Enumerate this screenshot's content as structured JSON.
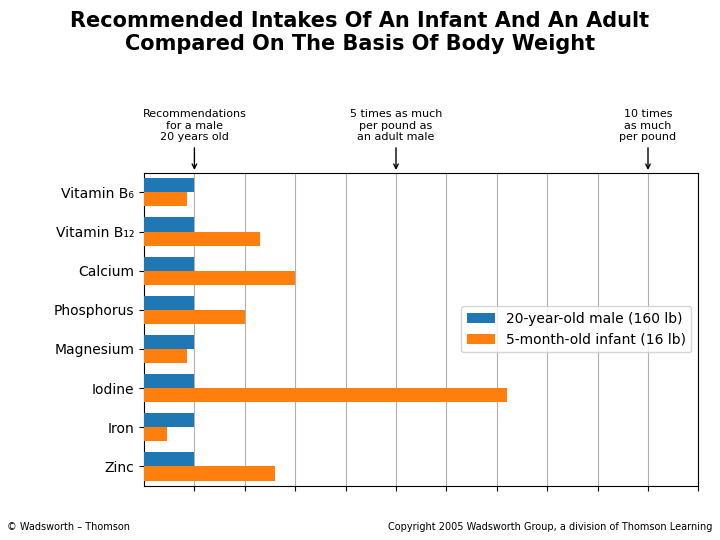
{
  "chart_data": {
    "type": "bar",
    "orientation": "horizontal",
    "title": "Recommended Intakes Of An Infant And An Adult\nCompared On The Basis Of Body Weight",
    "categories": [
      "Vitamin B₆",
      "Vitamin B₁₂",
      "Calcium",
      "Phosphorus",
      "Magnesium",
      "Iodine",
      "Iron",
      "Zinc"
    ],
    "series": [
      {
        "name": "20-year-old male (160 lb)",
        "values": [
          1.0,
          1.0,
          1.0,
          1.0,
          1.0,
          1.0,
          1.0,
          1.0
        ]
      },
      {
        "name": "5-month-old infant (16 lb)",
        "values": [
          0.85,
          2.3,
          3.0,
          2.0,
          0.85,
          7.2,
          0.45,
          2.6
        ]
      }
    ],
    "xlim": [
      0,
      11
    ],
    "xticks": [
      1,
      2,
      3,
      4,
      5,
      6,
      7,
      8,
      9,
      10,
      11
    ],
    "grid": true,
    "legend": "center right",
    "tick_labels": "y",
    "annotations": [
      {
        "text": "Recommendations\nfor a male\n20 years old",
        "x": 1.0
      },
      {
        "text": "5 times as much\nper pound as\nan adult male",
        "x": 5.0
      },
      {
        "text": "10 times\nas much\nper pound",
        "x": 10.0
      },
      {
        "text": "© Wadsworth – Thomson"
      },
      {
        "text": "Copyright 2005 Wadsworth Group, a division of Thomson Learning"
      }
    ]
  }
}
